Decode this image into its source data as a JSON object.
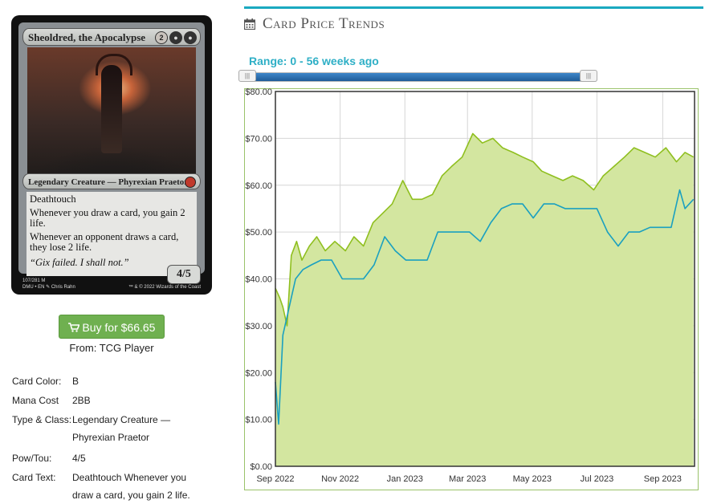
{
  "card": {
    "name": "Sheoldred, the Apocalypse",
    "mana_symbols": [
      "2",
      "B",
      "B"
    ],
    "type_line": "Legendary Creature — Phyrexian Praetor",
    "rules": [
      "Deathtouch",
      "Whenever you draw a card, you gain 2 life.",
      "Whenever an opponent draws a card, they lose 2 life."
    ],
    "flavor": "“Gix failed. I shall not.”",
    "power_toughness": "4/5",
    "collector": "107/281 M",
    "set_lang": "DMU • EN",
    "artist": "Chris Rahn",
    "copyright": "™ & © 2022 Wizards of the Coast"
  },
  "buy": {
    "label": "Buy for $66.65",
    "icon": "cart-icon",
    "color": "#6fb050"
  },
  "from": "From: TCG Player",
  "details": [
    {
      "key": "Card Color:",
      "value": "B"
    },
    {
      "key": "Mana Cost",
      "value": "2BB"
    },
    {
      "key": "Type & Class:",
      "value": "Legendary Creature — Phyrexian Praetor"
    },
    {
      "key": "Pow/Tou:",
      "value": "4/5"
    },
    {
      "key": "Card Text:",
      "value": "Deathtouch Whenever you draw a card, you gain 2 life."
    }
  ],
  "section_title": "Card Price Trends",
  "section_icon": "calendar-icon",
  "range_label": "Range: 0 - 56 weeks ago",
  "slider": {
    "min_weeks_ago": 0,
    "max_weeks_ago": 56
  },
  "accent_color": "#1aa9c0",
  "chart_data": {
    "type": "area",
    "x_tick_labels": [
      "Sep 2022",
      "Nov 2022",
      "Jan 2023",
      "Mar 2023",
      "May 2023",
      "Jul 2023",
      "Sep 2023"
    ],
    "x_range": [
      "2022-09-01",
      "2023-10-01"
    ],
    "ylim": [
      0,
      80
    ],
    "y_ticks": [
      0,
      10,
      20,
      30,
      40,
      50,
      60,
      70,
      80
    ],
    "y_tick_labels": [
      "$0.00",
      "$10.00",
      "$20.00",
      "$30.00",
      "$40.00",
      "$50.00",
      "$60.00",
      "$70.00",
      "$80.00"
    ],
    "grid": true,
    "series": [
      {
        "color": "#8fbf1f",
        "fill": "#d3e6a0",
        "points": [
          [
            "2022-09-01",
            38
          ],
          [
            "2022-09-05",
            36
          ],
          [
            "2022-09-08",
            34
          ],
          [
            "2022-09-12",
            30
          ],
          [
            "2022-09-16",
            45
          ],
          [
            "2022-09-21",
            48
          ],
          [
            "2022-09-26",
            44
          ],
          [
            "2022-10-03",
            47
          ],
          [
            "2022-10-10",
            49
          ],
          [
            "2022-10-18",
            46
          ],
          [
            "2022-10-27",
            48
          ],
          [
            "2022-11-06",
            46
          ],
          [
            "2022-11-14",
            49
          ],
          [
            "2022-11-23",
            47
          ],
          [
            "2022-12-02",
            52
          ],
          [
            "2022-12-11",
            54
          ],
          [
            "2022-12-20",
            56
          ],
          [
            "2022-12-30",
            61
          ],
          [
            "2023-01-08",
            57
          ],
          [
            "2023-01-17",
            57
          ],
          [
            "2023-01-27",
            58
          ],
          [
            "2023-02-05",
            62
          ],
          [
            "2023-02-14",
            64
          ],
          [
            "2023-02-24",
            66
          ],
          [
            "2023-03-06",
            71
          ],
          [
            "2023-03-15",
            69
          ],
          [
            "2023-03-25",
            70
          ],
          [
            "2023-04-03",
            68
          ],
          [
            "2023-04-13",
            67
          ],
          [
            "2023-04-22",
            66
          ],
          [
            "2023-05-02",
            65
          ],
          [
            "2023-05-10",
            63
          ],
          [
            "2023-05-20",
            62
          ],
          [
            "2023-05-30",
            61
          ],
          [
            "2023-06-08",
            62
          ],
          [
            "2023-06-18",
            61
          ],
          [
            "2023-06-28",
            59
          ],
          [
            "2023-07-07",
            62
          ],
          [
            "2023-07-17",
            64
          ],
          [
            "2023-07-27",
            66
          ],
          [
            "2023-08-05",
            68
          ],
          [
            "2023-08-15",
            67
          ],
          [
            "2023-08-25",
            66
          ],
          [
            "2023-09-04",
            68
          ],
          [
            "2023-09-14",
            65
          ],
          [
            "2023-09-22",
            67
          ],
          [
            "2023-09-30",
            66
          ]
        ]
      },
      {
        "color": "#1aa0c0",
        "points": [
          [
            "2022-09-01",
            18
          ],
          [
            "2022-09-04",
            9
          ],
          [
            "2022-09-08",
            28
          ],
          [
            "2022-09-14",
            34
          ],
          [
            "2022-09-20",
            40
          ],
          [
            "2022-09-27",
            42
          ],
          [
            "2022-10-05",
            43
          ],
          [
            "2022-10-14",
            44
          ],
          [
            "2022-10-24",
            44
          ],
          [
            "2022-11-03",
            40
          ],
          [
            "2022-11-13",
            40
          ],
          [
            "2022-11-23",
            40
          ],
          [
            "2022-12-03",
            43
          ],
          [
            "2022-12-13",
            49
          ],
          [
            "2022-12-23",
            46
          ],
          [
            "2023-01-02",
            44
          ],
          [
            "2023-01-12",
            44
          ],
          [
            "2023-01-22",
            44
          ],
          [
            "2023-02-01",
            50
          ],
          [
            "2023-02-11",
            50
          ],
          [
            "2023-02-21",
            50
          ],
          [
            "2023-03-03",
            50
          ],
          [
            "2023-03-13",
            48
          ],
          [
            "2023-03-23",
            52
          ],
          [
            "2023-04-02",
            55
          ],
          [
            "2023-04-12",
            56
          ],
          [
            "2023-04-22",
            56
          ],
          [
            "2023-05-02",
            53
          ],
          [
            "2023-05-12",
            56
          ],
          [
            "2023-05-22",
            56
          ],
          [
            "2023-06-01",
            55
          ],
          [
            "2023-06-11",
            55
          ],
          [
            "2023-06-21",
            55
          ],
          [
            "2023-07-01",
            55
          ],
          [
            "2023-07-11",
            50
          ],
          [
            "2023-07-21",
            47
          ],
          [
            "2023-07-31",
            50
          ],
          [
            "2023-08-10",
            50
          ],
          [
            "2023-08-20",
            51
          ],
          [
            "2023-08-30",
            51
          ],
          [
            "2023-09-09",
            51
          ],
          [
            "2023-09-17",
            59
          ],
          [
            "2023-09-22",
            55
          ],
          [
            "2023-09-30",
            57
          ]
        ]
      }
    ]
  }
}
